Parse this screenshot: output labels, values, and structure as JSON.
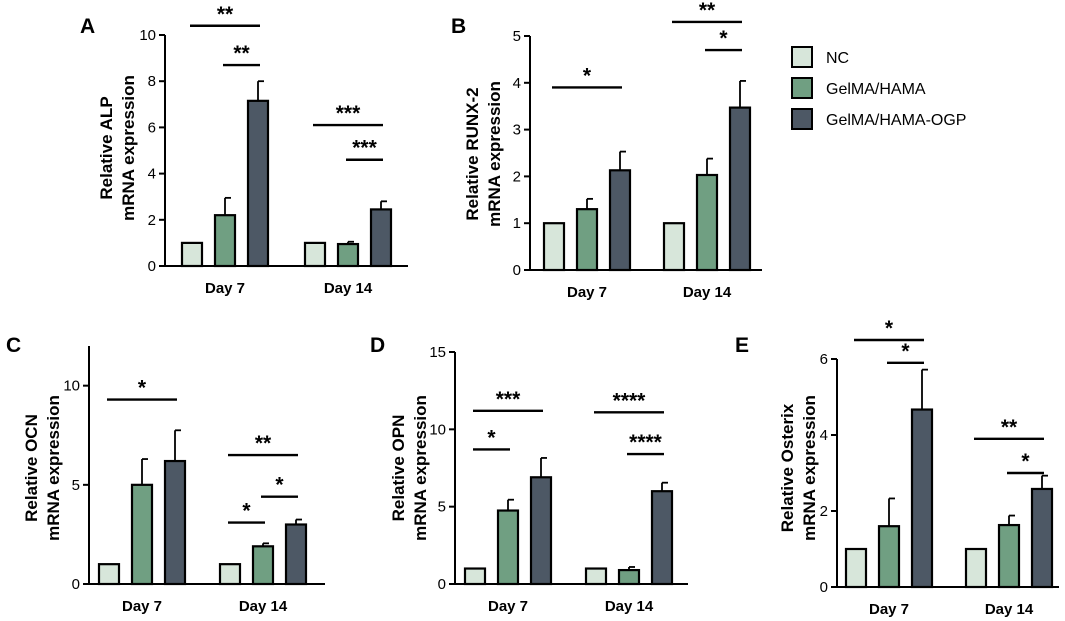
{
  "figure": {
    "legend": [
      {
        "label": "NC",
        "color": "#d7e6da"
      },
      {
        "label": "GelMA/HAMA",
        "color": "#709f82"
      },
      {
        "label": "GelMA/HAMA-OGP",
        "color": "#4d5865"
      }
    ]
  },
  "chart_data": [
    {
      "panel": "A",
      "type": "bar",
      "ylabel": [
        "Relative ALP",
        "mRNA expression"
      ],
      "ylim": [
        0,
        10
      ],
      "yticks": [
        0,
        2,
        4,
        6,
        8,
        10
      ],
      "categories": [
        "Day 7",
        "Day 14"
      ],
      "series": [
        {
          "name": "NC",
          "values": [
            1.0,
            1.0
          ],
          "errors": [
            0,
            0
          ]
        },
        {
          "name": "GelMA/HAMA",
          "values": [
            2.2,
            0.95
          ],
          "errors": [
            0.75,
            0.1
          ]
        },
        {
          "name": "GelMA/HAMA-OGP",
          "values": [
            7.15,
            2.45
          ],
          "errors": [
            0.85,
            0.35
          ]
        }
      ],
      "significance": [
        {
          "category": 0,
          "from": 0,
          "to": 2,
          "label": "**",
          "y": 10.4
        },
        {
          "category": 0,
          "from": 1,
          "to": 2,
          "label": "**",
          "y": 8.7
        },
        {
          "category": 1,
          "from": 0,
          "to": 2,
          "label": "***",
          "y": 6.1
        },
        {
          "category": 1,
          "from": 1,
          "to": 2,
          "label": "***",
          "y": 4.6
        }
      ]
    },
    {
      "panel": "B",
      "type": "bar",
      "ylabel": [
        "Relative RUNX-2",
        "mRNA expression"
      ],
      "ylim": [
        0,
        5
      ],
      "yticks": [
        0,
        1,
        2,
        3,
        4,
        5
      ],
      "categories": [
        "Day 7",
        "Day 14"
      ],
      "series": [
        {
          "name": "NC",
          "values": [
            1.0,
            1.0
          ],
          "errors": [
            0,
            0
          ]
        },
        {
          "name": "GelMA/HAMA",
          "values": [
            1.3,
            2.03
          ],
          "errors": [
            0.22,
            0.35
          ]
        },
        {
          "name": "GelMA/HAMA-OGP",
          "values": [
            2.13,
            3.47
          ],
          "errors": [
            0.4,
            0.57
          ]
        }
      ],
      "significance": [
        {
          "category": 0,
          "from": 0,
          "to": 2,
          "label": "*",
          "y": 3.9
        },
        {
          "category": 1,
          "from": 0,
          "to": 2,
          "label": "**",
          "y": 5.3
        },
        {
          "category": 1,
          "from": 1,
          "to": 2,
          "label": "*",
          "y": 4.7
        }
      ]
    },
    {
      "panel": "C",
      "type": "bar",
      "ylabel": [
        "Relative OCN",
        "mRNA expression"
      ],
      "ylim": [
        0,
        12
      ],
      "yticks": [
        0,
        5,
        10
      ],
      "categories": [
        "Day 7",
        "Day 14"
      ],
      "series": [
        {
          "name": "NC",
          "values": [
            1.0,
            1.0
          ],
          "errors": [
            0,
            0
          ]
        },
        {
          "name": "GelMA/HAMA",
          "values": [
            5.0,
            1.9
          ],
          "errors": [
            1.3,
            0.15
          ]
        },
        {
          "name": "GelMA/HAMA-OGP",
          "values": [
            6.2,
            3.0
          ],
          "errors": [
            1.55,
            0.25
          ]
        }
      ],
      "significance": [
        {
          "category": 0,
          "from": 0,
          "to": 2,
          "label": "*",
          "y": 9.3
        },
        {
          "category": 1,
          "from": 0,
          "to": 2,
          "label": "**",
          "y": 6.5
        },
        {
          "category": 1,
          "from": 0,
          "to": 1,
          "label": "*",
          "y": 3.1
        },
        {
          "category": 1,
          "from": 1,
          "to": 2,
          "label": "*",
          "y": 4.4
        }
      ]
    },
    {
      "panel": "D",
      "type": "bar",
      "ylabel": [
        "Relative OPN",
        "mRNA expression"
      ],
      "ylim": [
        0,
        15
      ],
      "yticks": [
        0,
        5,
        10,
        15
      ],
      "categories": [
        "Day 7",
        "Day 14"
      ],
      "series": [
        {
          "name": "NC",
          "values": [
            1.0,
            1.0
          ],
          "errors": [
            0,
            0
          ]
        },
        {
          "name": "GelMA/HAMA",
          "values": [
            4.75,
            0.9
          ],
          "errors": [
            0.7,
            0.2
          ]
        },
        {
          "name": "GelMA/HAMA-OGP",
          "values": [
            6.9,
            6.0
          ],
          "errors": [
            1.25,
            0.55
          ]
        }
      ],
      "significance": [
        {
          "category": 0,
          "from": 0,
          "to": 2,
          "label": "***",
          "y": 11.2
        },
        {
          "category": 0,
          "from": 0,
          "to": 1,
          "label": "*",
          "y": 8.7
        },
        {
          "category": 1,
          "from": 0,
          "to": 2,
          "label": "****",
          "y": 11.1
        },
        {
          "category": 1,
          "from": 1,
          "to": 2,
          "label": "****",
          "y": 8.4
        }
      ]
    },
    {
      "panel": "E",
      "type": "bar",
      "ylabel": [
        "Relative Osterix",
        "mRNA expression"
      ],
      "ylim": [
        0,
        6
      ],
      "yticks": [
        0,
        2,
        4,
        6
      ],
      "categories": [
        "Day 7",
        "Day 14"
      ],
      "series": [
        {
          "name": "NC",
          "values": [
            1.0,
            1.0
          ],
          "errors": [
            0,
            0
          ]
        },
        {
          "name": "GelMA/HAMA",
          "values": [
            1.6,
            1.63
          ],
          "errors": [
            0.73,
            0.25
          ]
        },
        {
          "name": "GelMA/HAMA-OGP",
          "values": [
            4.67,
            2.58
          ],
          "errors": [
            1.05,
            0.35
          ]
        }
      ],
      "significance": [
        {
          "category": 0,
          "from": 0,
          "to": 2,
          "label": "*",
          "y": 6.5
        },
        {
          "category": 0,
          "from": 1,
          "to": 2,
          "label": "*",
          "y": 5.9
        },
        {
          "category": 1,
          "from": 0,
          "to": 2,
          "label": "**",
          "y": 3.9
        },
        {
          "category": 1,
          "from": 1,
          "to": 2,
          "label": "*",
          "y": 3.0
        }
      ]
    }
  ]
}
